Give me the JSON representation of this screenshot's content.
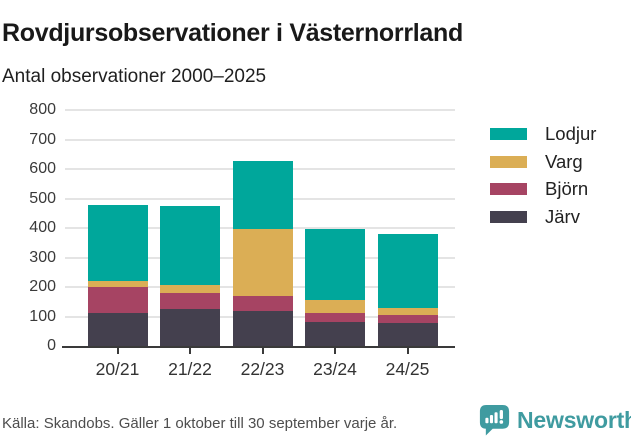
{
  "header": {
    "title": "Rovdjursobservationer i Västernorrland",
    "subtitle": "Antal observationer 2000–2025"
  },
  "chart_data": {
    "type": "bar",
    "stacked": true,
    "title": "Rovdjursobservationer i Västernorrland",
    "subtitle": "Antal observationer 2000–2025",
    "categories": [
      "20/21",
      "21/22",
      "22/23",
      "23/24",
      "24/25"
    ],
    "series": [
      {
        "name": "Lodjur",
        "color": "#00a79b",
        "values": [
          259,
          267,
          231,
          240,
          249
        ]
      },
      {
        "name": "Varg",
        "color": "#dbae55",
        "values": [
          20,
          28,
          228,
          45,
          26
        ]
      },
      {
        "name": "Björn",
        "color": "#a64463",
        "values": [
          86,
          53,
          50,
          29,
          25
        ]
      },
      {
        "name": "Järv",
        "color": "#44404e",
        "values": [
          113,
          125,
          118,
          82,
          79
        ]
      }
    ],
    "stack_order_bottom_to_top": [
      "Järv",
      "Björn",
      "Varg",
      "Lodjur"
    ],
    "totals": [
      478,
      473,
      627,
      396,
      379
    ],
    "xlabel": "",
    "ylabel": "Antal observationer",
    "ylim": [
      0,
      800
    ],
    "ytick_step": 100,
    "yticks": [
      "0",
      "100",
      "200",
      "300",
      "400",
      "500",
      "600",
      "700",
      "800"
    ],
    "grid": true,
    "legend_position": "right"
  },
  "footer": {
    "source": "Källa: Skandobs. Gäller 1 oktober till 30 september varje år.",
    "brand": "Newsworthy"
  },
  "colors": {
    "lodjur": "#00a79b",
    "varg": "#dbae55",
    "bjorn": "#a64463",
    "jarv": "#44404e",
    "gridline": "#e4e4e4",
    "axis": "#3a3a3a",
    "brand_teal": "#3f9ba0"
  }
}
